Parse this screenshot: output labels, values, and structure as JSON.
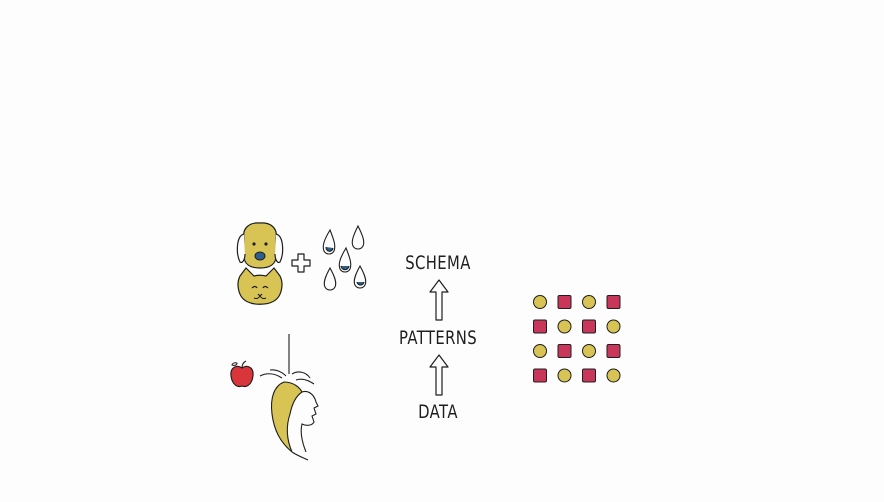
{
  "hierarchy": {
    "top": "SCHEMA",
    "middle": "PATTERNS",
    "bottom": "DATA"
  },
  "icons": {
    "pets": "dog-and-cat-icon",
    "plus": "plus-icon",
    "tears": "raindrops-icon",
    "apple": "falling-apple-icon",
    "person": "girl-profile-icon",
    "grid": "pattern-grid-icon"
  },
  "colors": {
    "yellow": "#d8c454",
    "red": "#c8375a",
    "blue": "#2f5f8c",
    "ink": "#1e1e1e",
    "apple": "#d9363b"
  },
  "grid_pattern": [
    [
      "circle",
      "square",
      "circle",
      "square"
    ],
    [
      "square",
      "circle",
      "square",
      "circle"
    ],
    [
      "circle",
      "square",
      "circle",
      "square"
    ],
    [
      "square",
      "circle",
      "square",
      "circle"
    ]
  ]
}
